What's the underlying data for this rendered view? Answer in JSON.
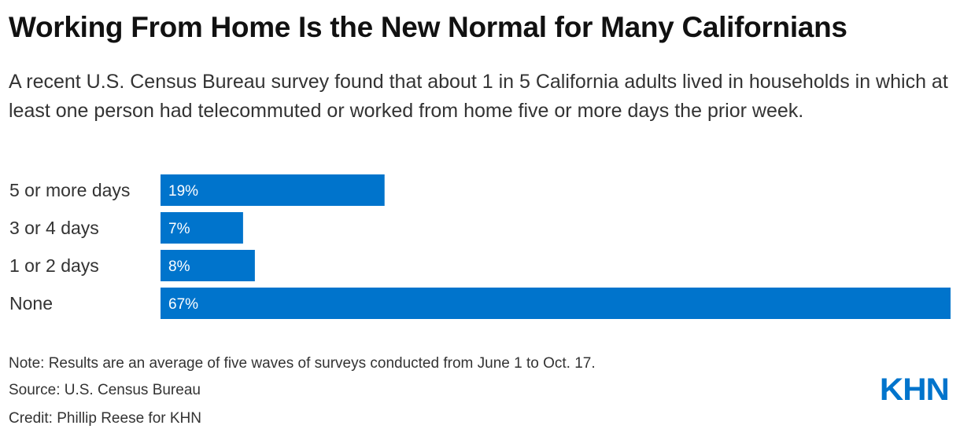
{
  "header": {
    "title": "Working From Home Is the New Normal for Many Californians",
    "subtitle": "A recent U.S. Census Bureau survey found that about 1 in 5 California adults lived in households in which at least one person had telecommuted or worked from home five or more days the prior week."
  },
  "chart_data": {
    "type": "bar",
    "orientation": "horizontal",
    "categories": [
      "5 or more days",
      "3 or 4 days",
      "1 or 2 days",
      "None"
    ],
    "values": [
      19,
      7,
      8,
      67
    ],
    "value_labels": [
      "19%",
      "7%",
      "8%",
      "67%"
    ],
    "unit": "%",
    "xlim": [
      0,
      67
    ],
    "bar_color": "#0074CC",
    "grid": false,
    "legend": "none"
  },
  "footer": {
    "note": "Note: Results are an average of five waves of surveys conducted from June 1 to Oct. 17.",
    "source": "Source: U.S. Census Bureau",
    "credit": "Credit: Phillip Reese for KHN"
  },
  "logo": {
    "text": "KHN",
    "color": "#0074CC"
  }
}
